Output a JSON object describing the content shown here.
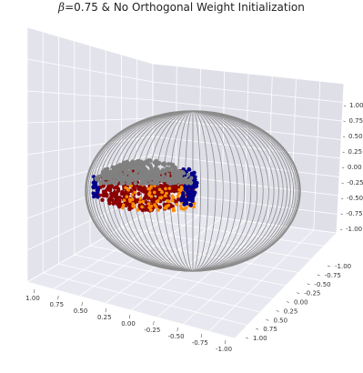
{
  "chart_data": {
    "type": "scatter",
    "title_symbol": "β",
    "title_rest": "=0.75 & No Orthogonal Weight Initialization",
    "projection": "3d",
    "grid": true,
    "background": "#eaeaf2",
    "sphere_wireframe": {
      "radius": 1.0,
      "color": "#8c8c8c"
    },
    "x_ticks": [
      "1.00",
      "0.75",
      "0.50",
      "0.25",
      "0.00",
      "-0.25",
      "-0.50",
      "-0.75",
      "-1.00"
    ],
    "y_ticks": [
      "-1.00",
      "-0.75",
      "-0.50",
      "-0.25",
      "0.00",
      "0.25",
      "0.50",
      "0.75",
      "1.00"
    ],
    "z_ticks": [
      "1.00",
      "0.75",
      "0.50",
      "0.25",
      "0.00",
      "-0.25",
      "-0.50",
      "-0.75",
      "-1.00"
    ],
    "xlim": [
      -1.0,
      1.0
    ],
    "ylim": [
      -1.0,
      1.0
    ],
    "zlim": [
      -1.0,
      1.0
    ],
    "point_colors": [
      "#808080",
      "#8b0000",
      "#ff8c00",
      "#00008b"
    ]
  }
}
